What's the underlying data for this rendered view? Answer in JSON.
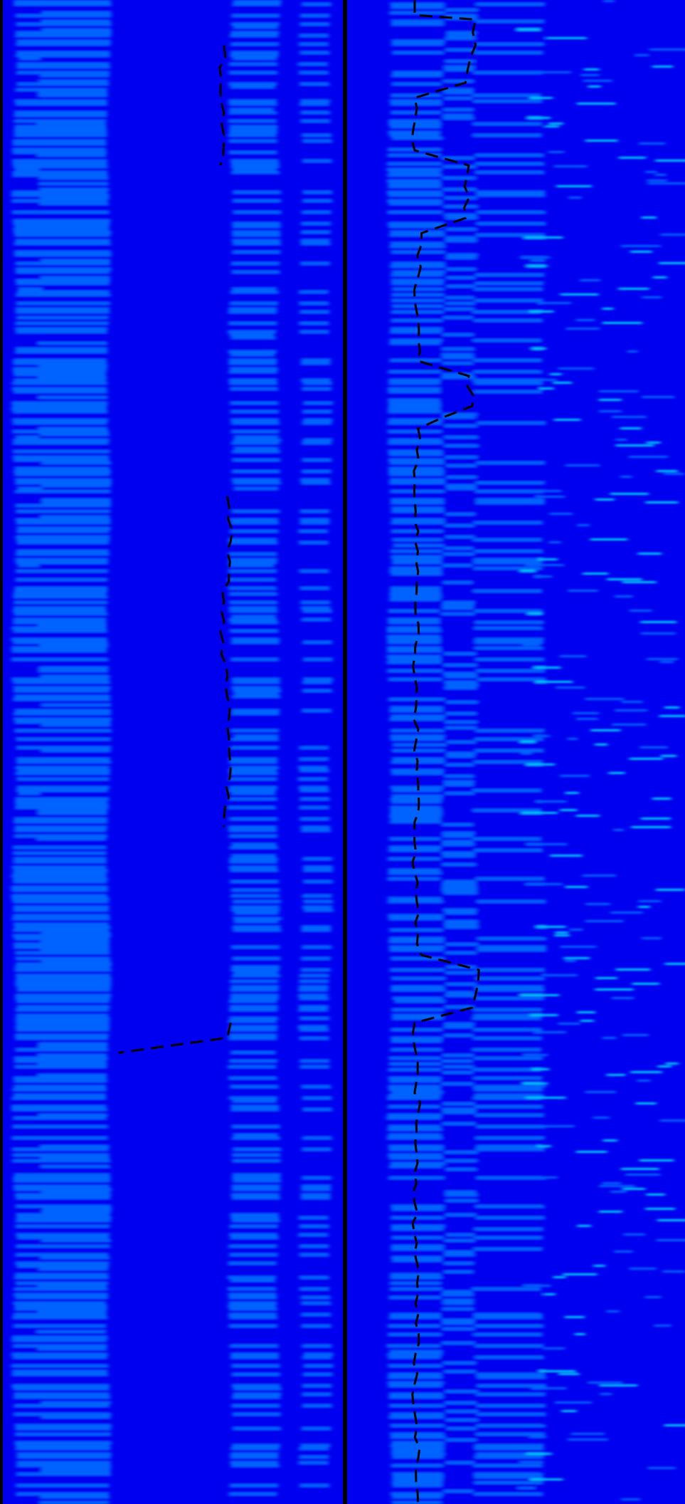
{
  "chart_data": [
    {
      "type": "heatmap",
      "panel": "left",
      "colormap": [
        "#0000f0",
        "#0064ff",
        "#00c8ff",
        "#00ffff",
        "#78ff78",
        "#ffff00",
        "#ffa500",
        "#ff2800"
      ],
      "grid": false,
      "bands": [
        {
          "name": "band-1",
          "x_center": 0.12,
          "width": 0.055,
          "peak": 1.0
        },
        {
          "name": "band-2",
          "x_center": 0.21,
          "width": 0.07,
          "peak": 0.55
        },
        {
          "name": "band-3",
          "x_center": 0.74,
          "width": 0.045,
          "peak": 0.95
        },
        {
          "name": "band-4",
          "x_center": 0.92,
          "width": 0.03,
          "peak": 0.45
        }
      ],
      "track": [
        [
          0.65,
          0.03
        ],
        [
          0.64,
          0.06
        ],
        [
          0.65,
          0.09
        ],
        [
          0.64,
          0.11
        ],
        [
          0.66,
          0.33
        ],
        [
          0.67,
          0.36
        ],
        [
          0.65,
          0.4
        ],
        [
          0.64,
          0.42
        ],
        [
          0.66,
          0.45
        ],
        [
          0.67,
          0.51
        ],
        [
          0.65,
          0.55
        ],
        [
          0.67,
          0.68
        ],
        [
          0.66,
          0.69
        ],
        [
          0.34,
          0.7
        ]
      ]
    },
    {
      "type": "heatmap",
      "panel": "right",
      "colormap": [
        "#0000f0",
        "#0064ff",
        "#00c8ff",
        "#00ffff",
        "#78ff78",
        "#ffff00",
        "#ffa500",
        "#ff2800"
      ],
      "grid": false,
      "bands": [
        {
          "name": "band-1",
          "x_center": 0.22,
          "width": 0.06,
          "peak": 1.0
        },
        {
          "name": "band-2",
          "x_center": 0.36,
          "width": 0.05,
          "peak": 0.7
        },
        {
          "name": "band-3",
          "x_center": 0.48,
          "width": 0.07,
          "peak": 0.45
        }
      ],
      "track": [
        [
          0.2,
          0.0
        ],
        [
          0.2,
          0.01
        ],
        [
          0.38,
          0.013
        ],
        [
          0.38,
          0.03
        ],
        [
          0.35,
          0.055
        ],
        [
          0.2,
          0.065
        ],
        [
          0.2,
          0.1
        ],
        [
          0.36,
          0.11
        ],
        [
          0.35,
          0.145
        ],
        [
          0.22,
          0.155
        ],
        [
          0.2,
          0.2
        ],
        [
          0.21,
          0.24
        ],
        [
          0.36,
          0.25
        ],
        [
          0.37,
          0.27
        ],
        [
          0.21,
          0.285
        ],
        [
          0.2,
          0.32
        ],
        [
          0.21,
          0.38
        ],
        [
          0.2,
          0.45
        ],
        [
          0.21,
          0.52
        ],
        [
          0.2,
          0.58
        ],
        [
          0.21,
          0.62
        ],
        [
          0.22,
          0.635
        ],
        [
          0.39,
          0.645
        ],
        [
          0.37,
          0.67
        ],
        [
          0.2,
          0.68
        ],
        [
          0.21,
          0.74
        ],
        [
          0.2,
          0.8
        ],
        [
          0.21,
          0.86
        ],
        [
          0.2,
          0.92
        ],
        [
          0.21,
          0.97
        ],
        [
          0.21,
          1.0
        ]
      ]
    }
  ]
}
